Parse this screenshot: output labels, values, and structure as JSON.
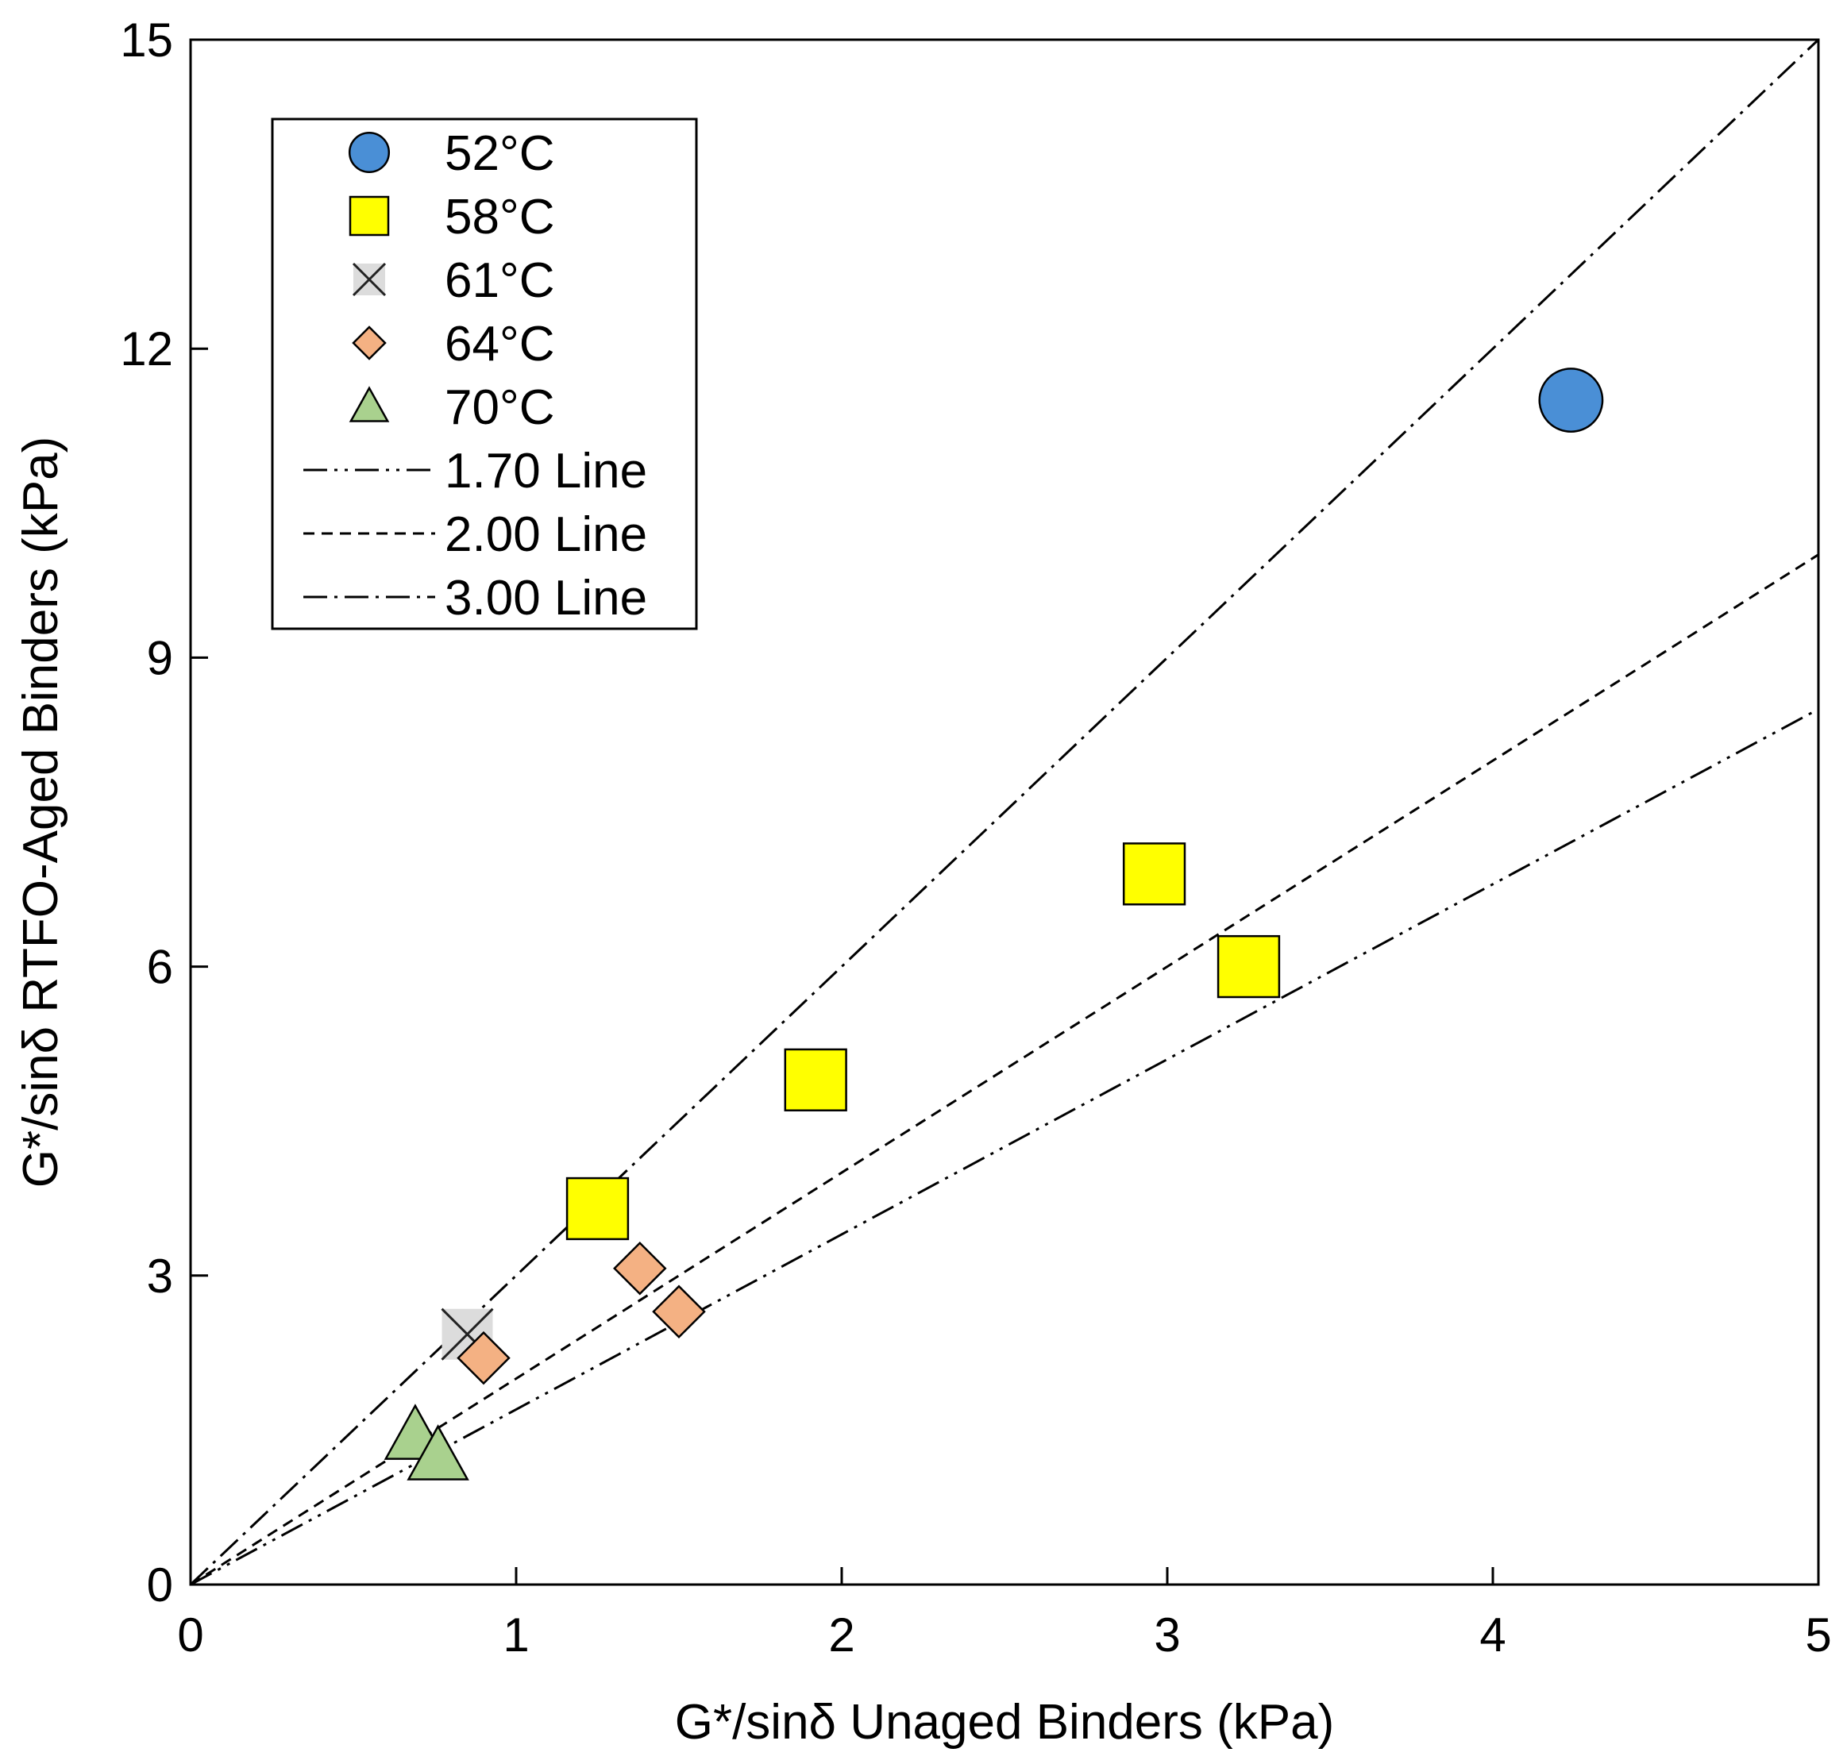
{
  "chart_data": {
    "type": "scatter",
    "title": "",
    "xlabel": "G*/sinδ Unaged Binders (kPa)",
    "ylabel": "G*/sinδ RTFO-Aged Binders (kPa)",
    "xlim": [
      0,
      5
    ],
    "ylim": [
      0,
      15
    ],
    "xticks": [
      0,
      1,
      2,
      3,
      4,
      5
    ],
    "yticks": [
      0,
      3,
      6,
      9,
      12,
      15
    ],
    "xtick_labels": [
      "0",
      "1",
      "2",
      "3",
      "4",
      "5"
    ],
    "ytick_labels": [
      "0",
      "3",
      "6",
      "9",
      "12",
      "15"
    ],
    "grid": false,
    "legend_position": "top-left",
    "series": [
      {
        "name": "52°C",
        "marker": "circle",
        "color": "#4a8fd6",
        "points": [
          [
            4.24,
            11.5
          ]
        ]
      },
      {
        "name": "58°C",
        "marker": "square",
        "color": "#ffff00",
        "points": [
          [
            1.25,
            3.65
          ],
          [
            1.92,
            4.9
          ],
          [
            2.96,
            6.9
          ],
          [
            3.25,
            6.0
          ]
        ]
      },
      {
        "name": "61°C",
        "marker": "x",
        "color": "#222222",
        "points": [
          [
            0.85,
            2.43
          ]
        ]
      },
      {
        "name": "64°C",
        "marker": "diamond",
        "color": "#f4b183",
        "points": [
          [
            0.9,
            2.2
          ],
          [
            1.38,
            3.07
          ],
          [
            1.5,
            2.65
          ]
        ]
      },
      {
        "name": "70°C",
        "marker": "triangle",
        "color": "#a9d18e",
        "points": [
          [
            0.69,
            1.45
          ],
          [
            0.76,
            1.25
          ]
        ]
      }
    ],
    "lines": [
      {
        "name": "1.70 Line",
        "slope": 1.7,
        "dash": "dash-dot-dot"
      },
      {
        "name": "2.00 Line",
        "slope": 2.0,
        "dash": "dash"
      },
      {
        "name": "3.00 Line",
        "slope": 3.0,
        "dash": "dash-dot"
      }
    ]
  }
}
